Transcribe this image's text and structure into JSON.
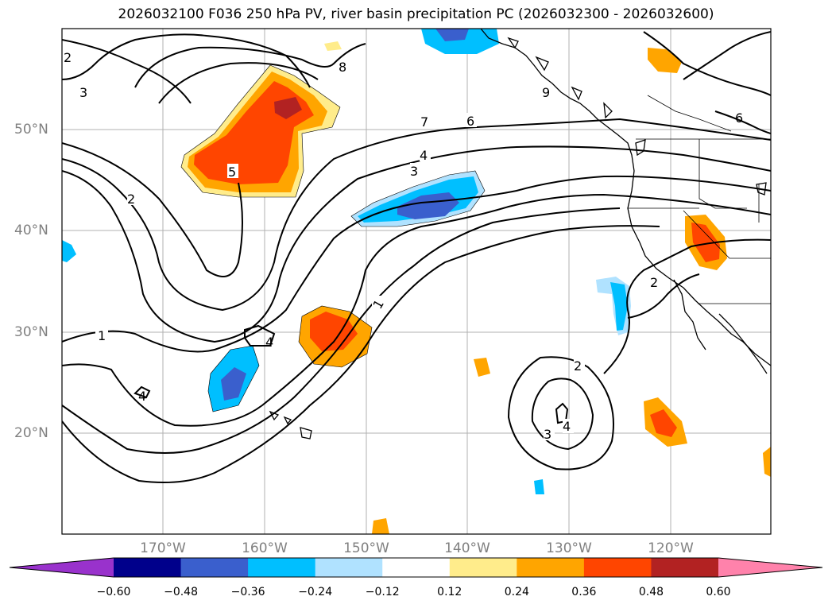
{
  "title": "2026032100 F036 250 hPa PV, river basin precipitation PC (2026032300 - 2026032600)",
  "map": {
    "lat_labels": [
      {
        "text": "50°N",
        "lat": 50
      },
      {
        "text": "40°N",
        "lat": 40
      },
      {
        "text": "30°N",
        "lat": 30
      },
      {
        "text": "20°N",
        "lat": 20
      }
    ],
    "lon_labels": [
      {
        "text": "170°W",
        "lon": -170
      },
      {
        "text": "160°W",
        "lon": -160
      },
      {
        "text": "150°W",
        "lon": -150
      },
      {
        "text": "140°W",
        "lon": -140
      },
      {
        "text": "130°W",
        "lon": -130
      },
      {
        "text": "120°W",
        "lon": -120
      }
    ],
    "pv_contour_labels": [
      "1",
      "2",
      "3",
      "4",
      "5",
      "6",
      "7",
      "8",
      "9"
    ]
  },
  "colorbar": {
    "colors": [
      "#9932cc",
      "#00008b",
      "#3a5fcd",
      "#00bfff",
      "#b0e2ff",
      "#ffffff",
      "#ffec8b",
      "#ffa500",
      "#ff4500",
      "#b22222",
      "#ff82ab"
    ],
    "ticks": [
      "−0.60",
      "−0.48",
      "−0.36",
      "−0.24",
      "−0.12",
      "0.12",
      "0.24",
      "0.36",
      "0.48",
      "0.60"
    ]
  }
}
